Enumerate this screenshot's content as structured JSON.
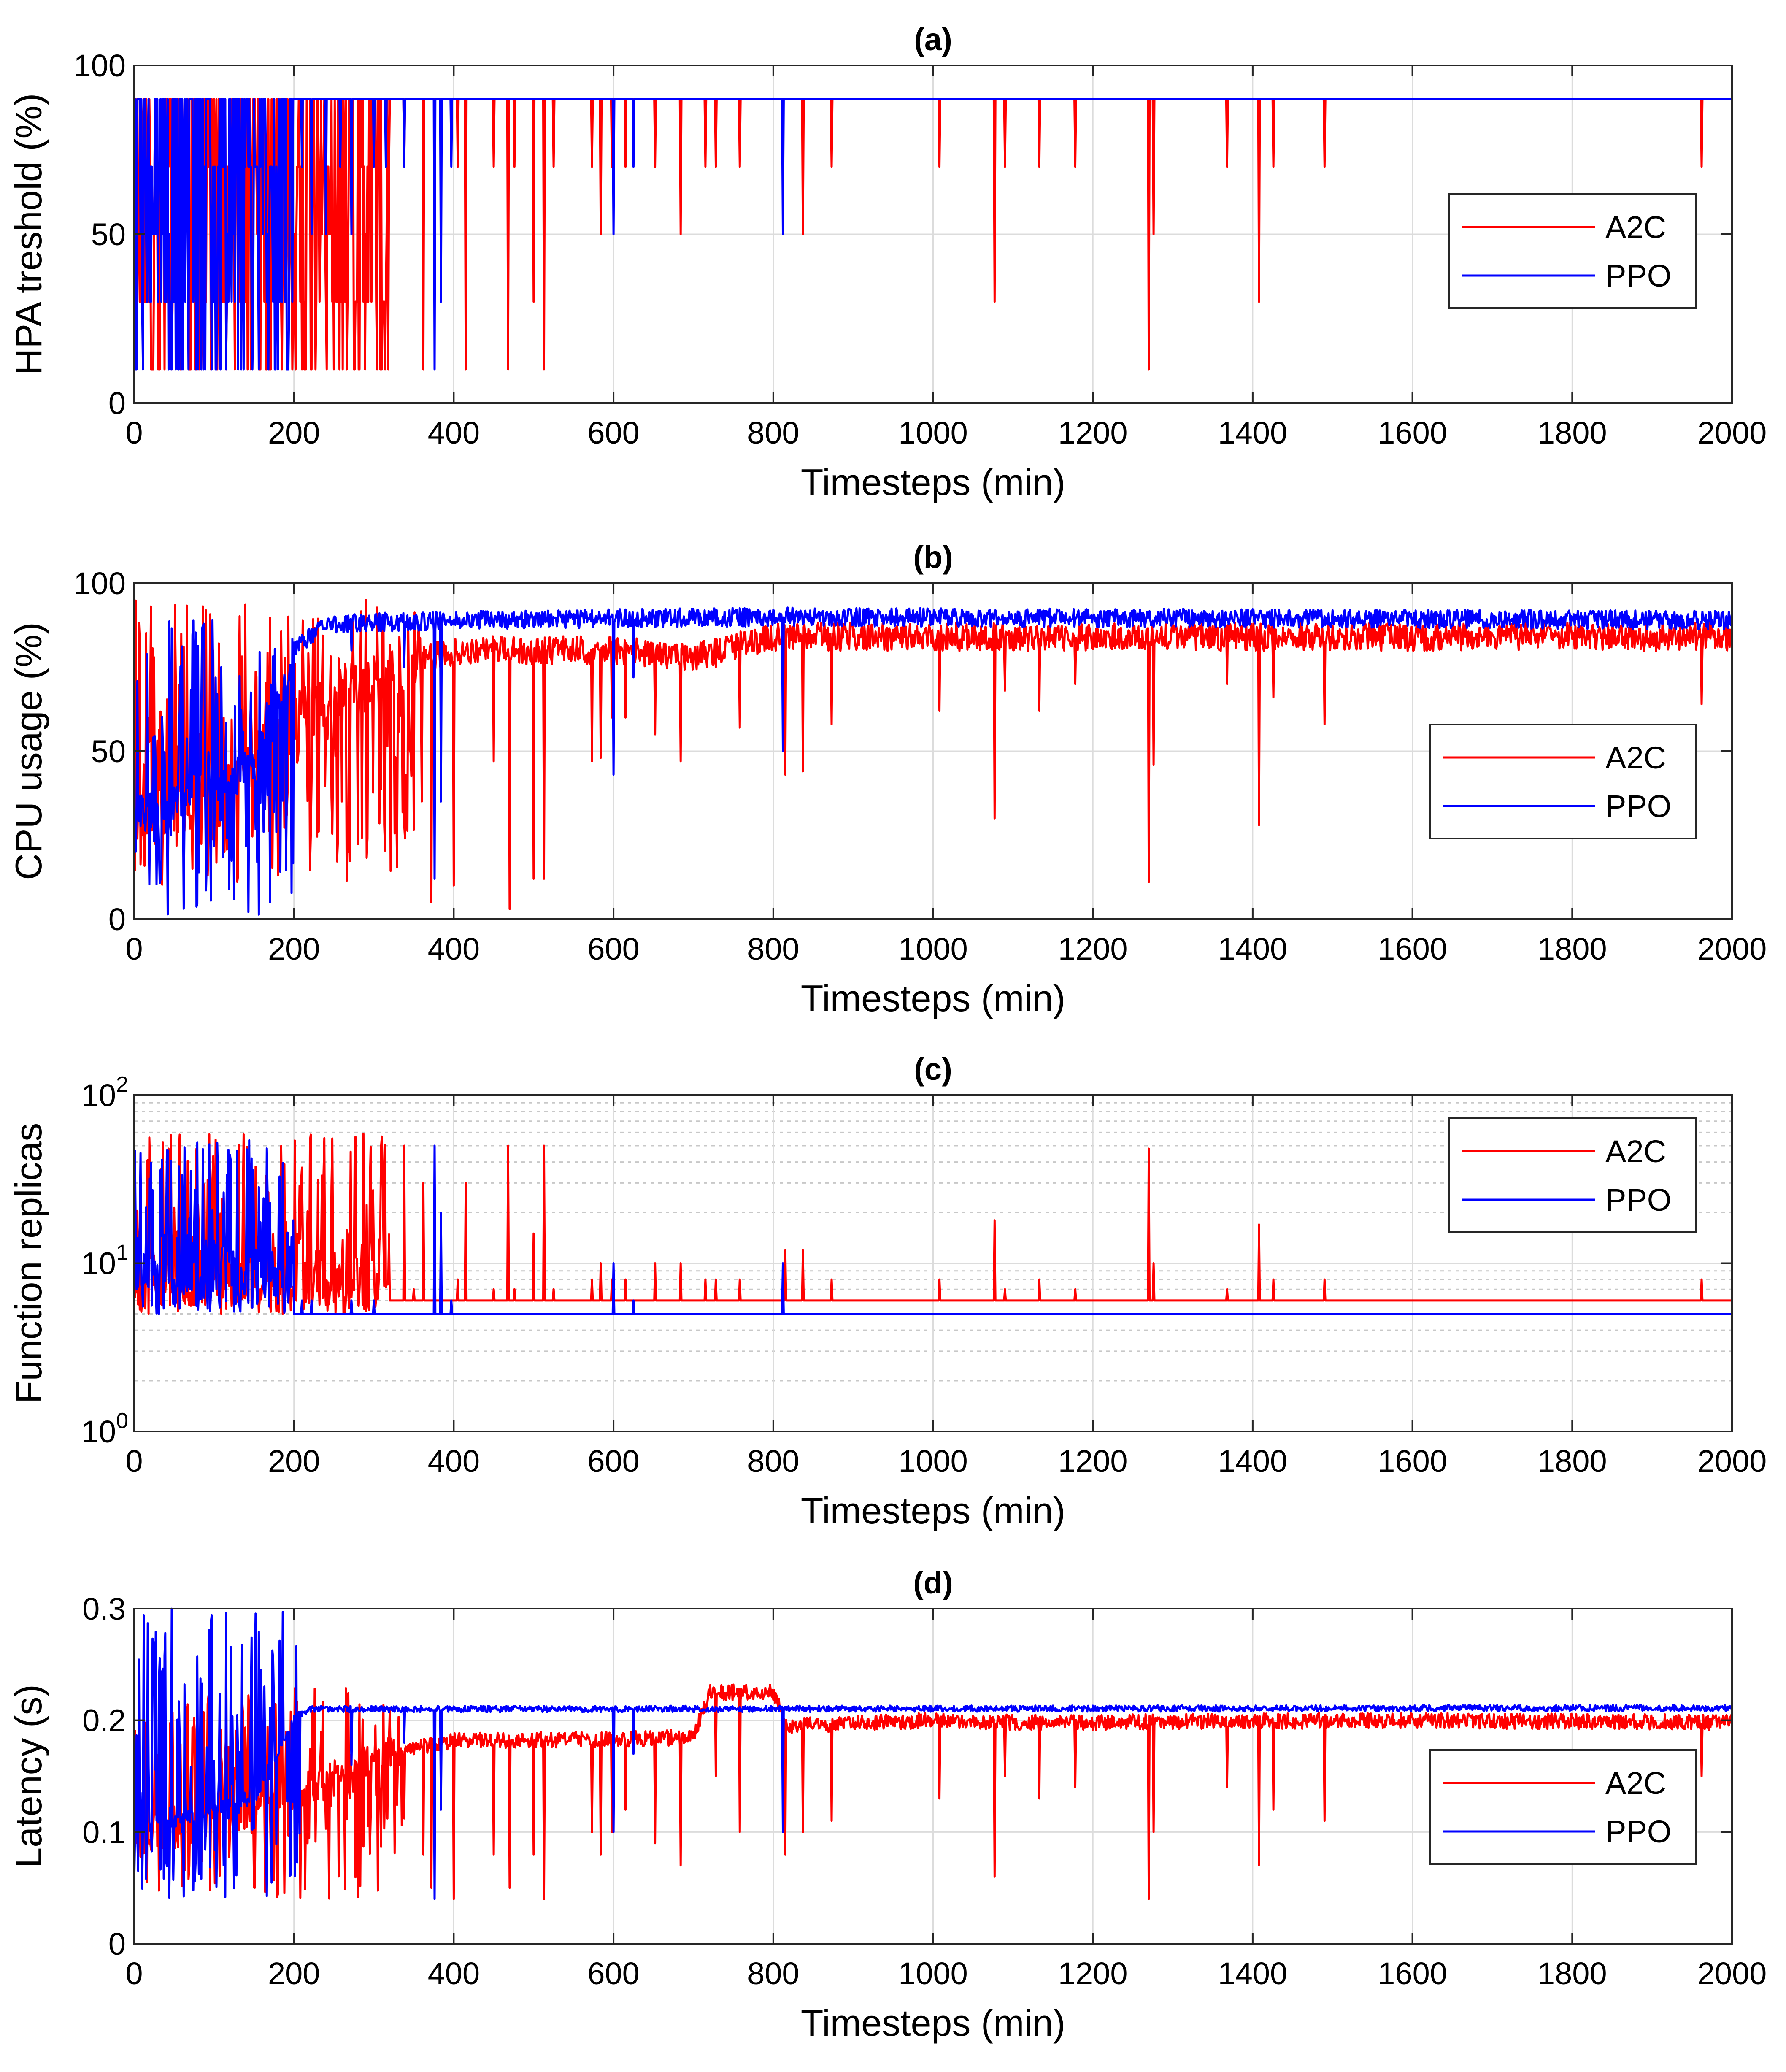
{
  "chart_data": [
    {
      "type": "line",
      "id": "a",
      "title": "(a)",
      "xlabel": "Timesteps (min)",
      "ylabel": "HPA treshold (%)",
      "yscale": "linear",
      "xlim": [
        0,
        2000
      ],
      "ylim": [
        0,
        100
      ],
      "xticks": [
        0,
        200,
        400,
        600,
        800,
        1000,
        1200,
        1400,
        1600,
        1800,
        2000
      ],
      "yticks": [
        0,
        50,
        100
      ],
      "ytick_labels": [
        "0",
        "50",
        "100"
      ],
      "grid": true,
      "legend": {
        "position": "right-middle",
        "entries": [
          "A2C",
          "PPO"
        ]
      },
      "series": [
        {
          "name": "A2C",
          "color": "#ff0000",
          "baseline": 90,
          "early_end": 320,
          "early_levels": [
            10,
            30,
            50,
            70,
            90
          ],
          "dips": [
            [
              338,
              70
            ],
            [
              350,
              90
            ],
            [
              362,
              10
            ],
            [
              405,
              70
            ],
            [
              415,
              10
            ],
            [
              450,
              70
            ],
            [
              468,
              10
            ],
            [
              476,
              70
            ],
            [
              500,
              30
            ],
            [
              513,
              10
            ],
            [
              525,
              70
            ],
            [
              573,
              70
            ],
            [
              584,
              50
            ],
            [
              598,
              70
            ],
            [
              615,
              70
            ],
            [
              652,
              70
            ],
            [
              684,
              50
            ],
            [
              715,
              70
            ],
            [
              728,
              70
            ],
            [
              758,
              70
            ],
            [
              837,
              50
            ],
            [
              873,
              70
            ],
            [
              1008,
              70
            ],
            [
              1077,
              30
            ],
            [
              1090,
              70
            ],
            [
              1133,
              70
            ],
            [
              1178,
              70
            ],
            [
              1270,
              10
            ],
            [
              1276,
              50
            ],
            [
              1368,
              70
            ],
            [
              1408,
              30
            ],
            [
              1426,
              70
            ],
            [
              1490,
              70
            ],
            [
              1962,
              70
            ]
          ]
        },
        {
          "name": "PPO",
          "color": "#0000ff",
          "baseline": 90,
          "early_end": 200,
          "early_levels": [
            10,
            30,
            50,
            70,
            90
          ],
          "dips": [
            [
              210,
              70
            ],
            [
              222,
              50
            ],
            [
              240,
              50
            ],
            [
              258,
              70
            ],
            [
              272,
              50
            ],
            [
              300,
              70
            ],
            [
              315,
              70
            ],
            [
              338,
              70
            ],
            [
              376,
              10
            ],
            [
              384,
              30
            ],
            [
              397,
              70
            ],
            [
              600,
              50
            ],
            [
              625,
              70
            ],
            [
              812,
              50
            ]
          ]
        }
      ]
    },
    {
      "type": "line",
      "id": "b",
      "title": "(b)",
      "xlabel": "Timesteps (min)",
      "ylabel": "CPU usage (%)",
      "yscale": "linear",
      "xlim": [
        0,
        2000
      ],
      "ylim": [
        0,
        100
      ],
      "xticks": [
        0,
        200,
        400,
        600,
        800,
        1000,
        1200,
        1400,
        1600,
        1800,
        2000
      ],
      "yticks": [
        0,
        50,
        100
      ],
      "ytick_labels": [
        "0",
        "50",
        "100"
      ],
      "grid": true,
      "legend": {
        "position": "right-lower",
        "entries": [
          "A2C",
          "PPO"
        ]
      },
      "series": [
        {
          "name": "A2C",
          "color": "#ff0000",
          "level": [
            [
              0,
              30
            ],
            [
              100,
              35
            ],
            [
              180,
              55
            ],
            [
              240,
              65
            ],
            [
              300,
              72
            ],
            [
              360,
              78
            ],
            [
              420,
              80
            ],
            [
              600,
              80
            ],
            [
              700,
              78
            ],
            [
              800,
              84
            ],
            [
              1000,
              84
            ],
            [
              1600,
              84
            ],
            [
              2000,
              84
            ]
          ],
          "noise": 3,
          "early_end": 360,
          "early_range": [
            10,
            95
          ],
          "dips": [
            [
              338,
              47
            ],
            [
              360,
              35
            ],
            [
              372,
              5
            ],
            [
              400,
              10
            ],
            [
              450,
              47
            ],
            [
              470,
              3
            ],
            [
              500,
              12
            ],
            [
              513,
              12
            ],
            [
              573,
              47
            ],
            [
              584,
              48
            ],
            [
              598,
              60
            ],
            [
              615,
              60
            ],
            [
              652,
              55
            ],
            [
              684,
              47
            ],
            [
              728,
              75
            ],
            [
              758,
              57
            ],
            [
              815,
              43
            ],
            [
              837,
              44
            ],
            [
              873,
              58
            ],
            [
              1008,
              62
            ],
            [
              1077,
              30
            ],
            [
              1090,
              68
            ],
            [
              1133,
              62
            ],
            [
              1178,
              70
            ],
            [
              1270,
              11
            ],
            [
              1276,
              46
            ],
            [
              1368,
              70
            ],
            [
              1408,
              28
            ],
            [
              1426,
              66
            ],
            [
              1490,
              58
            ],
            [
              1962,
              64
            ]
          ]
        },
        {
          "name": "PPO",
          "color": "#0000ff",
          "level": [
            [
              0,
              30
            ],
            [
              150,
              45
            ],
            [
              200,
              80
            ],
            [
              240,
              88
            ],
            [
              400,
              89
            ],
            [
              800,
              90
            ],
            [
              2000,
              89
            ]
          ],
          "noise": 2,
          "early_end": 200,
          "early_range": [
            0,
            90
          ],
          "dips": [
            [
              272,
              80
            ],
            [
              338,
              75
            ],
            [
              376,
              12
            ],
            [
              384,
              35
            ],
            [
              600,
              43
            ],
            [
              625,
              72
            ],
            [
              812,
              50
            ]
          ]
        }
      ]
    },
    {
      "type": "line",
      "id": "c",
      "title": "(c)",
      "xlabel": "Timesteps (min)",
      "ylabel": "Function replicas",
      "yscale": "log",
      "xlim": [
        0,
        2000
      ],
      "ylim": [
        1,
        100
      ],
      "xticks": [
        0,
        200,
        400,
        600,
        800,
        1000,
        1200,
        1400,
        1600,
        1800,
        2000
      ],
      "yticks": [
        1,
        10,
        100
      ],
      "ytick_labels": [
        "10^0",
        "10^1",
        "10^2"
      ],
      "grid": true,
      "minor_grid": true,
      "legend": {
        "position": "right-top",
        "entries": [
          "A2C",
          "PPO"
        ]
      },
      "series": [
        {
          "name": "A2C",
          "color": "#ff0000",
          "baseline": 6,
          "early_end": 320,
          "early_range": [
            5,
            60
          ],
          "dips": [
            [
              338,
              50
            ],
            [
              350,
              7
            ],
            [
              362,
              30
            ],
            [
              405,
              8
            ],
            [
              415,
              30
            ],
            [
              450,
              7
            ],
            [
              468,
              50
            ],
            [
              476,
              7
            ],
            [
              500,
              15
            ],
            [
              513,
              50
            ],
            [
              525,
              7
            ],
            [
              573,
              8
            ],
            [
              584,
              10
            ],
            [
              598,
              8
            ],
            [
              615,
              8
            ],
            [
              652,
              10
            ],
            [
              684,
              10
            ],
            [
              715,
              8
            ],
            [
              728,
              8
            ],
            [
              758,
              8
            ],
            [
              815,
              12
            ],
            [
              837,
              12
            ],
            [
              873,
              8
            ],
            [
              1008,
              8
            ],
            [
              1077,
              18
            ],
            [
              1090,
              7
            ],
            [
              1133,
              8
            ],
            [
              1178,
              7
            ],
            [
              1270,
              48
            ],
            [
              1276,
              10
            ],
            [
              1368,
              7
            ],
            [
              1408,
              17
            ],
            [
              1426,
              8
            ],
            [
              1490,
              8
            ],
            [
              1962,
              8
            ]
          ]
        },
        {
          "name": "PPO",
          "color": "#0000ff",
          "baseline": 5,
          "early_end": 200,
          "early_range": [
            5,
            55
          ],
          "dips": [
            [
              210,
              6
            ],
            [
              222,
              6
            ],
            [
              272,
              6
            ],
            [
              300,
              6
            ],
            [
              376,
              50
            ],
            [
              384,
              20
            ],
            [
              397,
              6
            ],
            [
              600,
              10
            ],
            [
              625,
              6
            ],
            [
              812,
              10
            ]
          ]
        }
      ]
    },
    {
      "type": "line",
      "id": "d",
      "title": "(d)",
      "xlabel": "Timesteps (min)",
      "ylabel": "Latency (s)",
      "yscale": "linear",
      "xlim": [
        0,
        2000
      ],
      "ylim": [
        0,
        0.3
      ],
      "xticks": [
        0,
        200,
        400,
        600,
        800,
        1000,
        1200,
        1400,
        1600,
        1800,
        2000
      ],
      "yticks": [
        0,
        0.1,
        0.2,
        0.3
      ],
      "ytick_labels": [
        "0",
        "0.1",
        "0.2",
        "0.3"
      ],
      "grid": true,
      "legend": {
        "position": "right-lower",
        "entries": [
          "A2C",
          "PPO"
        ]
      },
      "series": [
        {
          "name": "A2C",
          "color": "#ff0000",
          "level": [
            [
              0,
              0.09
            ],
            [
              150,
              0.12
            ],
            [
              250,
              0.15
            ],
            [
              320,
              0.17
            ],
            [
              400,
              0.182
            ],
            [
              600,
              0.183
            ],
            [
              700,
              0.185
            ],
            [
              720,
              0.225
            ],
            [
              800,
              0.225
            ],
            [
              820,
              0.195
            ],
            [
              1000,
              0.2
            ],
            [
              1100,
              0.198
            ],
            [
              1600,
              0.2
            ],
            [
              2000,
              0.198
            ]
          ],
          "noise": 0.005,
          "early_end": 340,
          "early_range": [
            0.04,
            0.23
          ],
          "dips": [
            [
              338,
              0.1
            ],
            [
              362,
              0.08
            ],
            [
              372,
              0.05
            ],
            [
              400,
              0.04
            ],
            [
              450,
              0.08
            ],
            [
              470,
              0.05
            ],
            [
              500,
              0.08
            ],
            [
              513,
              0.04
            ],
            [
              573,
              0.1
            ],
            [
              584,
              0.08
            ],
            [
              598,
              0.1
            ],
            [
              615,
              0.12
            ],
            [
              652,
              0.09
            ],
            [
              684,
              0.07
            ],
            [
              728,
              0.15
            ],
            [
              758,
              0.1
            ],
            [
              815,
              0.08
            ],
            [
              837,
              0.1
            ],
            [
              873,
              0.11
            ],
            [
              1008,
              0.13
            ],
            [
              1077,
              0.06
            ],
            [
              1090,
              0.15
            ],
            [
              1133,
              0.13
            ],
            [
              1178,
              0.14
            ],
            [
              1270,
              0.04
            ],
            [
              1276,
              0.1
            ],
            [
              1368,
              0.14
            ],
            [
              1408,
              0.07
            ],
            [
              1426,
              0.12
            ],
            [
              1490,
              0.11
            ],
            [
              1962,
              0.15
            ]
          ]
        },
        {
          "name": "PPO",
          "color": "#0000ff",
          "level": [
            [
              0,
              0.1
            ],
            [
              150,
              0.13
            ],
            [
              200,
              0.2
            ],
            [
              220,
              0.21
            ],
            [
              2000,
              0.211
            ]
          ],
          "noise": 0.002,
          "early_end": 210,
          "early_range": [
            0.04,
            0.3
          ],
          "dips": [
            [
              272,
              0.16
            ],
            [
              338,
              0.18
            ],
            [
              376,
              0.04
            ],
            [
              384,
              0.12
            ],
            [
              600,
              0.1
            ],
            [
              625,
              0.17
            ],
            [
              812,
              0.1
            ]
          ]
        }
      ]
    }
  ]
}
